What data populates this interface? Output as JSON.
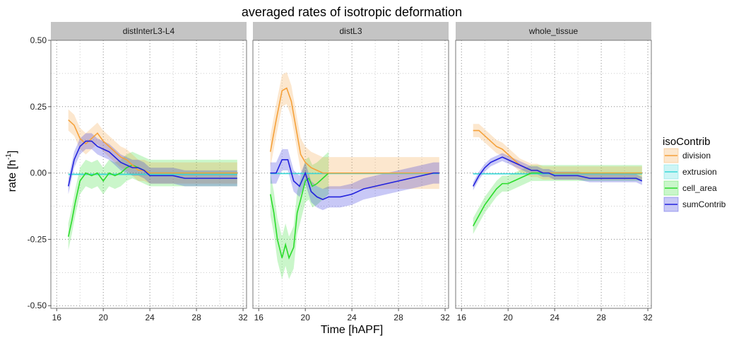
{
  "chart_data": {
    "type": "line",
    "title": "averaged rates of isotropic deformation",
    "xlabel": "Time [hAPF]",
    "ylabel": "rate [h",
    "ylabel_sup": "-1",
    "ylabel_end": "]",
    "xlim": [
      15.5,
      32.3
    ],
    "ylim": [
      -0.51,
      0.5
    ],
    "xticks": [
      16,
      20,
      24,
      28,
      32
    ],
    "xtick_labels": [
      "16",
      "20",
      "24",
      "28",
      "32"
    ],
    "yticks": [
      0.5,
      0.25,
      0.0,
      -0.25,
      -0.5
    ],
    "ytick_labels": [
      "0.50",
      "0.25",
      "0.00",
      "-0.25",
      "-0.50"
    ],
    "grid": true,
    "legend_title": "isoContrib",
    "legend_position": "right",
    "colors": {
      "division": "#f5a13a",
      "extrusion": "#3cd8d8",
      "cell_area": "#2bdc2b",
      "sumContrib": "#2222dd",
      "strip_bg": "#c4c4c4"
    },
    "panels": [
      {
        "name": "distInterL3-L4",
        "series": [
          {
            "name": "division",
            "x": [
              17,
              17.5,
              18,
              18.5,
              19,
              19.5,
              20,
              20.5,
              21,
              21.5,
              22,
              22.5,
              23,
              23.5,
              24,
              26,
              28,
              30,
              31.5
            ],
            "y": [
              0.2,
              0.18,
              0.13,
              0.11,
              0.13,
              0.15,
              0.12,
              0.1,
              0.08,
              0.06,
              0.05,
              0.03,
              0.01,
              0.01,
              0.0,
              0.0,
              0.0,
              0.0,
              0.0
            ],
            "band": 0.04
          },
          {
            "name": "extrusion",
            "x": [
              17,
              20,
              24,
              28,
              31.5
            ],
            "y": [
              -0.005,
              -0.005,
              -0.005,
              -0.005,
              -0.005
            ],
            "band": 0.004
          },
          {
            "name": "cell_area",
            "x": [
              17,
              17.3,
              17.6,
              18,
              18.5,
              19,
              19.5,
              20,
              20.5,
              21,
              21.5,
              22,
              22.5,
              23,
              23.5,
              24,
              26,
              28,
              30,
              31.5
            ],
            "y": [
              -0.24,
              -0.18,
              -0.11,
              -0.03,
              0.0,
              -0.01,
              0.0,
              -0.03,
              0.0,
              -0.01,
              0.0,
              0.02,
              0.03,
              0.02,
              0.01,
              0.0,
              0.0,
              0.0,
              0.0,
              0.0
            ],
            "band": 0.05
          },
          {
            "name": "sumContrib",
            "x": [
              17,
              17.5,
              18,
              18.5,
              19,
              19.5,
              20,
              20.5,
              21,
              21.5,
              22,
              22.5,
              23,
              23.5,
              24,
              25,
              26,
              27,
              28,
              29,
              30,
              31,
              31.5
            ],
            "y": [
              -0.05,
              0.05,
              0.1,
              0.12,
              0.12,
              0.1,
              0.09,
              0.08,
              0.06,
              0.04,
              0.03,
              0.02,
              0.02,
              0.01,
              -0.01,
              -0.01,
              -0.01,
              -0.02,
              -0.02,
              -0.02,
              -0.02,
              -0.02,
              -0.02
            ],
            "band": 0.03
          }
        ]
      },
      {
        "name": "distL3",
        "series": [
          {
            "name": "division",
            "x": [
              17,
              17.5,
              18,
              18.4,
              18.8,
              19.2,
              19.6,
              20,
              20.5,
              21,
              21.5,
              22,
              23,
              24,
              25,
              26,
              28,
              30,
              31.5
            ],
            "y": [
              0.08,
              0.2,
              0.31,
              0.32,
              0.27,
              0.17,
              0.07,
              0.04,
              0.02,
              0.01,
              0.0,
              0.0,
              0.0,
              0.0,
              0.0,
              0.0,
              0.0,
              0.0,
              0.0
            ],
            "band": 0.06
          },
          {
            "name": "extrusion",
            "x": [
              17,
              20,
              24,
              28,
              31.5
            ],
            "y": [
              -0.002,
              -0.002,
              -0.002,
              -0.002,
              -0.002
            ],
            "band": 0.003
          },
          {
            "name": "cell_area",
            "x": [
              17,
              17.3,
              17.6,
              18,
              18.3,
              18.6,
              19,
              19.3,
              19.6,
              20,
              20.3,
              20.6,
              21,
              21.5,
              22
            ],
            "y": [
              -0.08,
              -0.15,
              -0.25,
              -0.32,
              -0.27,
              -0.32,
              -0.28,
              -0.15,
              -0.1,
              -0.03,
              -0.02,
              -0.05,
              -0.04,
              -0.02,
              0.0
            ],
            "band": 0.08
          },
          {
            "name": "sumContrib",
            "x": [
              17,
              17.5,
              18,
              18.5,
              19,
              19.5,
              20,
              20.5,
              21,
              21.5,
              22,
              22.5,
              23,
              24,
              25,
              26,
              27,
              28,
              29,
              30,
              31,
              31.5
            ],
            "y": [
              0.0,
              0.0,
              0.05,
              0.05,
              -0.03,
              -0.05,
              0.0,
              -0.07,
              -0.09,
              -0.1,
              -0.09,
              -0.09,
              -0.09,
              -0.08,
              -0.06,
              -0.05,
              -0.04,
              -0.03,
              -0.02,
              -0.01,
              0.0,
              0.0
            ],
            "band": 0.04
          }
        ]
      },
      {
        "name": "whole_tissue",
        "series": [
          {
            "name": "division",
            "x": [
              17,
              17.5,
              18,
              18.5,
              19,
              19.5,
              20,
              20.5,
              21,
              21.5,
              22,
              22.5,
              23,
              24,
              26,
              28,
              30,
              31.5
            ],
            "y": [
              0.16,
              0.16,
              0.14,
              0.12,
              0.1,
              0.09,
              0.07,
              0.05,
              0.03,
              0.02,
              0.01,
              0.01,
              0.0,
              0.0,
              0.0,
              0.0,
              0.0,
              0.0
            ],
            "band": 0.025
          },
          {
            "name": "extrusion",
            "x": [
              17,
              20,
              24,
              28,
              31.5
            ],
            "y": [
              -0.003,
              -0.003,
              -0.003,
              -0.003,
              -0.003
            ],
            "band": 0.003
          },
          {
            "name": "cell_area",
            "x": [
              17,
              17.5,
              18,
              18.5,
              19,
              19.5,
              20,
              20.5,
              21,
              21.5,
              22,
              22.5,
              23,
              23.5,
              24,
              26,
              28,
              30,
              31.5
            ],
            "y": [
              -0.2,
              -0.16,
              -0.12,
              -0.09,
              -0.06,
              -0.04,
              -0.04,
              -0.03,
              -0.02,
              -0.01,
              0.0,
              0.0,
              0.0,
              0.0,
              0.0,
              0.0,
              0.0,
              0.0,
              0.0
            ],
            "band": 0.03
          },
          {
            "name": "sumContrib",
            "x": [
              17,
              17.5,
              18,
              18.5,
              19,
              19.5,
              20,
              20.5,
              21,
              21.5,
              22,
              22.5,
              23,
              23.5,
              24,
              25,
              26,
              27,
              28,
              29,
              30,
              31,
              31.5
            ],
            "y": [
              -0.05,
              -0.01,
              0.02,
              0.04,
              0.05,
              0.06,
              0.05,
              0.04,
              0.03,
              0.02,
              0.01,
              0.01,
              0.0,
              0.0,
              -0.01,
              -0.01,
              -0.01,
              -0.02,
              -0.02,
              -0.02,
              -0.02,
              -0.02,
              -0.03
            ],
            "band": 0.015
          }
        ]
      }
    ]
  }
}
